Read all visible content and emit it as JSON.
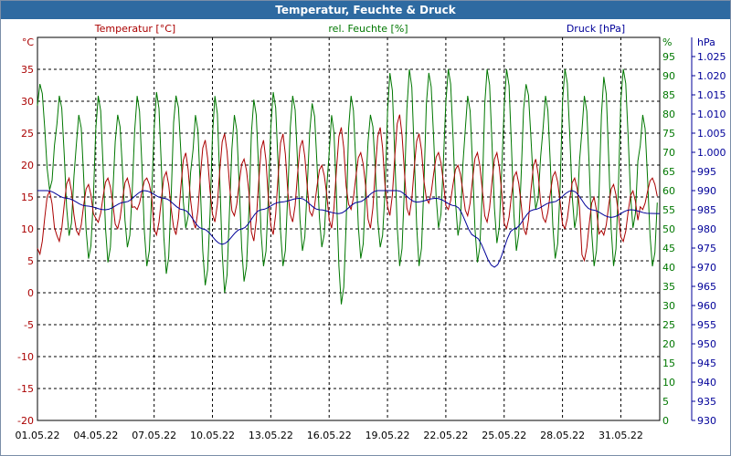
{
  "window": {
    "title": "Temperatur, Feuchte & Druck"
  },
  "colors": {
    "temperature": "#aa0000",
    "humidity": "#007700",
    "pressure": "#000099",
    "grid": "#000000",
    "titlebar": "#2e6aa1"
  },
  "chart_data": {
    "type": "line",
    "title": "Temperatur, Feuchte & Druck",
    "grid": true,
    "x": {
      "start": "01.05.22",
      "end": "01.06.22",
      "ticks": [
        "01.05.22",
        "04.05.22",
        "07.05.22",
        "10.05.22",
        "13.05.22",
        "16.05.22",
        "19.05.22",
        "22.05.22",
        "25.05.22",
        "28.05.22",
        "31.05.22"
      ]
    },
    "axes": {
      "temperature": {
        "label": "Temperatur [°C]",
        "unit": "°C",
        "range": [
          -20,
          40
        ],
        "ticks": [
          "35",
          "30",
          "25",
          "20",
          "15",
          "10",
          "5",
          "0",
          "-5",
          "-10",
          "-15",
          "-20"
        ]
      },
      "humidity": {
        "label": "rel. Feuchte [%]",
        "unit": "%",
        "range": [
          0,
          100
        ],
        "ticks": [
          "95",
          "90",
          "85",
          "80",
          "75",
          "70",
          "65",
          "60",
          "55",
          "50",
          "45",
          "40",
          "35",
          "30",
          "25",
          "20",
          "15",
          "10",
          "5",
          "0"
        ]
      },
      "pressure": {
        "label": "Druck [hPa]",
        "unit": "hPa",
        "range": [
          930,
          1030
        ],
        "ticks": [
          "1.025",
          "1.020",
          "1.015",
          "1.010",
          "1.005",
          "1.000",
          "995",
          "990",
          "985",
          "980",
          "975",
          "970",
          "965",
          "960",
          "955",
          "950",
          "945",
          "940",
          "935",
          "930"
        ]
      }
    },
    "series": [
      {
        "name": "Temperatur [°C]",
        "axis": "temperature",
        "daily": [
          [
            6,
            16
          ],
          [
            8,
            18
          ],
          [
            9,
            17
          ],
          [
            11,
            18
          ],
          [
            10,
            18
          ],
          [
            13,
            18
          ],
          [
            9,
            19
          ],
          [
            9,
            22
          ],
          [
            10,
            24
          ],
          [
            11,
            25
          ],
          [
            12,
            21
          ],
          [
            8,
            24
          ],
          [
            9,
            25
          ],
          [
            11,
            24
          ],
          [
            12,
            20
          ],
          [
            10,
            26
          ],
          [
            13,
            22
          ],
          [
            10,
            26
          ],
          [
            12,
            28
          ],
          [
            12,
            25
          ],
          [
            14,
            22
          ],
          [
            13,
            20
          ],
          [
            12,
            22
          ],
          [
            11,
            22
          ],
          [
            10,
            19
          ],
          [
            9,
            21
          ],
          [
            11,
            19
          ],
          [
            10,
            18
          ],
          [
            5,
            15
          ],
          [
            9,
            17
          ],
          [
            8,
            16
          ],
          [
            13,
            18
          ]
        ]
      },
      {
        "name": "rel. Feuchte [%]",
        "axis": "humidity",
        "daily": [
          [
            60,
            88
          ],
          [
            48,
            85
          ],
          [
            42,
            80
          ],
          [
            41,
            85
          ],
          [
            45,
            80
          ],
          [
            40,
            85
          ],
          [
            38,
            86
          ],
          [
            50,
            85
          ],
          [
            35,
            80
          ],
          [
            33,
            85
          ],
          [
            36,
            80
          ],
          [
            40,
            84
          ],
          [
            40,
            86
          ],
          [
            44,
            85
          ],
          [
            45,
            83
          ],
          [
            30,
            80
          ],
          [
            42,
            85
          ],
          [
            45,
            80
          ],
          [
            40,
            91
          ],
          [
            40,
            92
          ],
          [
            50,
            91
          ],
          [
            48,
            92
          ],
          [
            41,
            85
          ],
          [
            46,
            92
          ],
          [
            44,
            92
          ],
          [
            55,
            88
          ],
          [
            42,
            85
          ],
          [
            50,
            92
          ],
          [
            40,
            85
          ],
          [
            40,
            90
          ],
          [
            50,
            92
          ],
          [
            40,
            80
          ]
        ]
      },
      {
        "name": "Druck [hPa]",
        "axis": "pressure",
        "daily": [
          990,
          988,
          986,
          985,
          987,
          990,
          988,
          985,
          980,
          976,
          980,
          985,
          987,
          988,
          985,
          984,
          987,
          990,
          990,
          987,
          988,
          986,
          978,
          970,
          980,
          985,
          987,
          990,
          985,
          983,
          985,
          984
        ]
      }
    ]
  }
}
